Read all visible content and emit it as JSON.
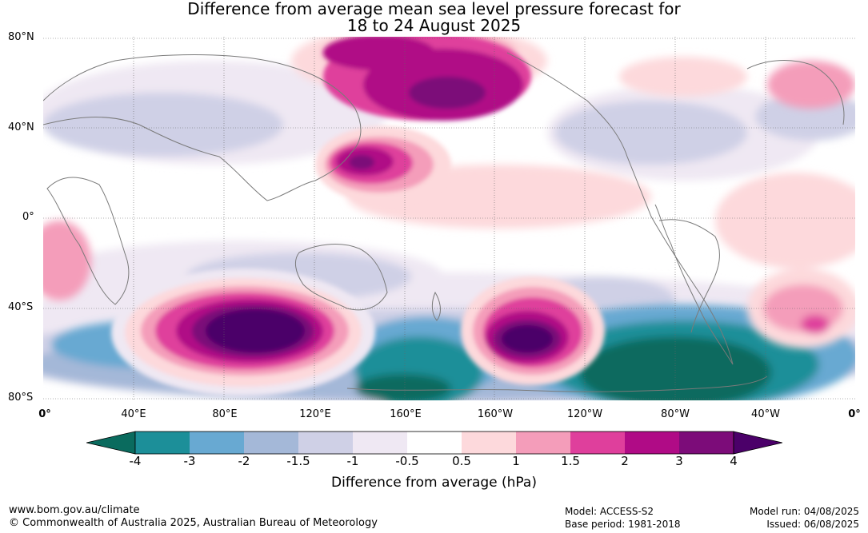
{
  "title": {
    "line1": "Difference from average mean sea level pressure forecast for",
    "line2": "18 to 24 August 2025"
  },
  "map": {
    "projection": "equirectangular",
    "lon_range": [
      "0°",
      "0°"
    ],
    "lat_range": [
      "80°S",
      "80°N"
    ],
    "lat_labels": [
      "80°N",
      "40°N",
      "0°",
      "40°S",
      "80°S"
    ],
    "lon_labels": [
      "0°",
      "40°E",
      "80°E",
      "120°E",
      "160°E",
      "160°W",
      "120°W",
      "80°W",
      "40°W",
      "0°"
    ],
    "grid": true,
    "features": [
      {
        "name": "Southern Indian Ocean high anomaly",
        "max_hpa": 4
      },
      {
        "name": "South Pacific high anomaly",
        "max_hpa": 4
      },
      {
        "name": "North Pacific / Bering high anomaly",
        "max_hpa": 3
      },
      {
        "name": "Northwest Pacific high anomaly",
        "max_hpa": 3
      },
      {
        "name": "Southeast Pacific / Antarctic low anomaly",
        "min_hpa": -4
      }
    ]
  },
  "colorbar": {
    "ticks": [
      "-4",
      "-3",
      "-2",
      "-1.5",
      "-1",
      "-0.5",
      "0.5",
      "1",
      "1.5",
      "2",
      "3",
      "4"
    ],
    "colors": {
      "lt_-4": "#0a6b5e",
      "-4_-3": "#1c8f99",
      "-3_-2": "#68a9d2",
      "-2_-1.5": "#a4b8d8",
      "-1.5_-1": "#cfd0e6",
      "-1_-0.5": "#efe8f3",
      "-0.5_0.5": "#ffffff",
      "0.5_1": "#fdd9dc",
      "1_1.5": "#f49dba",
      "1.5_2": "#df3f9c",
      "2_3": "#b00b86",
      "3_4": "#7c0c79",
      "gt_4": "#4b0069"
    },
    "label": "Difference from average (hPa)"
  },
  "footer": {
    "website": "www.bom.gov.au/climate",
    "copyright": "© Commonwealth of Australia 2025, Australian Bureau of Meteorology",
    "model": "Model: ACCESS-S2",
    "base_period": "Base period: 1981-2018",
    "model_run": "Model run: 04/08/2025",
    "issued": "Issued: 06/08/2025"
  }
}
